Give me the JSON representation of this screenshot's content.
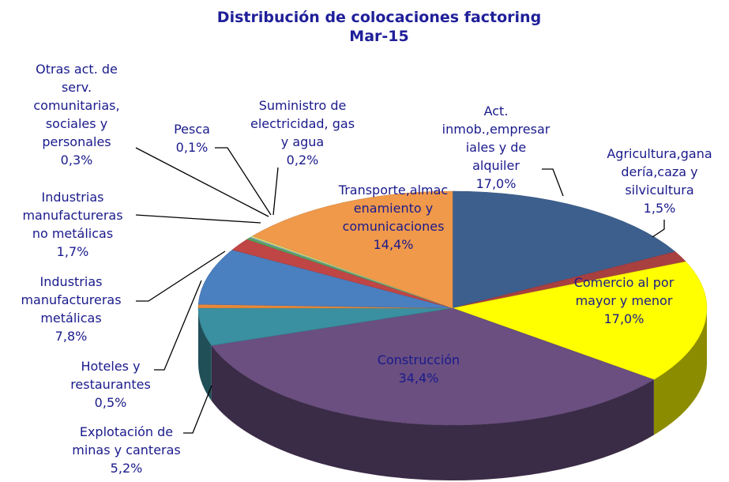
{
  "chart_data": {
    "type": "pie3d",
    "title": "Distribución de colocaciones factoring",
    "subtitle": "Mar-15",
    "categories": [
      "Act. inmob.,empresariales y de alquiler",
      "Agricultura,ganadería,caza y silvicultura",
      "Comercio al por mayor y menor",
      "Construcción",
      "Explotación de minas y canteras",
      "Hoteles y restaurantes",
      "Industrias manufactureras metálicas",
      "Industrias manufactureras no metálicas",
      "Otras act. de serv. comunitarias, sociales y personales",
      "Pesca",
      "Suministro de electricidad, gas y agua",
      "Transporte,almacenamiento y comunicaciones"
    ],
    "values": [
      17.0,
      1.5,
      17.0,
      34.4,
      5.2,
      0.5,
      7.8,
      1.7,
      0.3,
      0.1,
      0.2,
      14.4
    ],
    "value_labels": [
      "17,0%",
      "1,5%",
      "17,0%",
      "34,4%",
      "5,2%",
      "0,5%",
      "7,8%",
      "1,7%",
      "0,3%",
      "0,1%",
      "0,2%",
      "14,4%"
    ],
    "colors": [
      "#3d5f8e",
      "#a84040",
      "#ffff00",
      "#6a4f80",
      "#3a8fa0",
      "#e8893a",
      "#4a7fc0",
      "#c04545",
      "#5aa060",
      "#80b0e0",
      "#d8d870",
      "#f0994a"
    ]
  }
}
